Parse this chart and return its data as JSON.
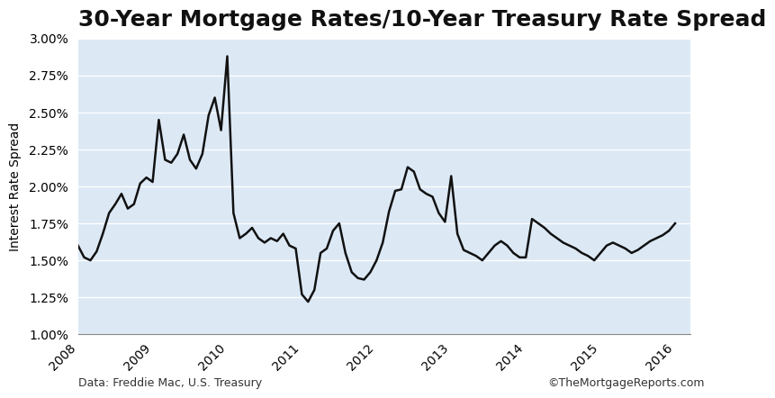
{
  "title": "30-Year Mortgage Rates/10-Year Treasury Rate Spread",
  "ylabel": "Interest Rate Spread",
  "footnote_left": "Data: Freddie Mac, U.S. Treasury",
  "footnote_right": "©TheMortgageReports.com",
  "plot_bg_color": "#dce9f5",
  "line_color": "#111111",
  "ylim": [
    1.0,
    3.0
  ],
  "yticks": [
    1.0,
    1.25,
    1.5,
    1.75,
    2.0,
    2.25,
    2.5,
    2.75,
    3.0
  ],
  "xtick_labels": [
    "2008",
    "2009",
    "2010",
    "2011",
    "2012",
    "2013",
    "2014",
    "2015",
    "2016"
  ],
  "x": [
    2008.0,
    2008.083,
    2008.167,
    2008.25,
    2008.333,
    2008.417,
    2008.5,
    2008.583,
    2008.667,
    2008.75,
    2008.833,
    2008.917,
    2009.0,
    2009.083,
    2009.167,
    2009.25,
    2009.333,
    2009.417,
    2009.5,
    2009.583,
    2009.667,
    2009.75,
    2009.833,
    2009.917,
    2010.0,
    2010.083,
    2010.167,
    2010.25,
    2010.333,
    2010.417,
    2010.5,
    2010.583,
    2010.667,
    2010.75,
    2010.833,
    2010.917,
    2011.0,
    2011.083,
    2011.167,
    2011.25,
    2011.333,
    2011.417,
    2011.5,
    2011.583,
    2011.667,
    2011.75,
    2011.833,
    2011.917,
    2012.0,
    2012.083,
    2012.167,
    2012.25,
    2012.333,
    2012.417,
    2012.5,
    2012.583,
    2012.667,
    2012.75,
    2012.833,
    2012.917,
    2013.0,
    2013.083,
    2013.167,
    2013.25,
    2013.333,
    2013.417,
    2013.5,
    2013.583,
    2013.667,
    2013.75,
    2013.833,
    2013.917,
    2014.0,
    2014.083,
    2014.167,
    2014.25,
    2014.333,
    2014.417,
    2014.5,
    2014.583,
    2014.667,
    2014.75,
    2014.833,
    2014.917,
    2015.0,
    2015.083,
    2015.167,
    2015.25,
    2015.333,
    2015.417,
    2015.5,
    2015.583,
    2015.667,
    2015.75,
    2015.833,
    2015.917,
    2016.0
  ],
  "y": [
    1.6,
    1.52,
    1.5,
    1.56,
    1.68,
    1.82,
    1.88,
    1.95,
    1.85,
    1.88,
    2.02,
    2.06,
    2.03,
    2.45,
    2.18,
    2.16,
    2.22,
    2.35,
    2.18,
    2.12,
    2.22,
    2.48,
    2.6,
    2.38,
    2.88,
    1.82,
    1.65,
    1.68,
    1.72,
    1.65,
    1.62,
    1.65,
    1.63,
    1.68,
    1.6,
    1.58,
    1.27,
    1.22,
    1.3,
    1.55,
    1.58,
    1.7,
    1.75,
    1.55,
    1.42,
    1.38,
    1.37,
    1.42,
    1.5,
    1.62,
    1.83,
    1.97,
    1.98,
    2.13,
    2.1,
    1.98,
    1.95,
    1.93,
    1.82,
    1.76,
    2.07,
    1.68,
    1.57,
    1.55,
    1.53,
    1.5,
    1.55,
    1.6,
    1.63,
    1.6,
    1.55,
    1.52,
    1.52,
    1.78,
    1.75,
    1.72,
    1.68,
    1.65,
    1.62,
    1.6,
    1.58,
    1.55,
    1.53,
    1.5,
    1.55,
    1.6,
    1.62,
    1.6,
    1.58,
    1.55,
    1.57,
    1.6,
    1.63,
    1.65,
    1.67,
    1.7,
    1.75
  ],
  "title_fontsize": 18,
  "axis_label_fontsize": 10,
  "tick_fontsize": 10,
  "footnote_fontsize": 9
}
